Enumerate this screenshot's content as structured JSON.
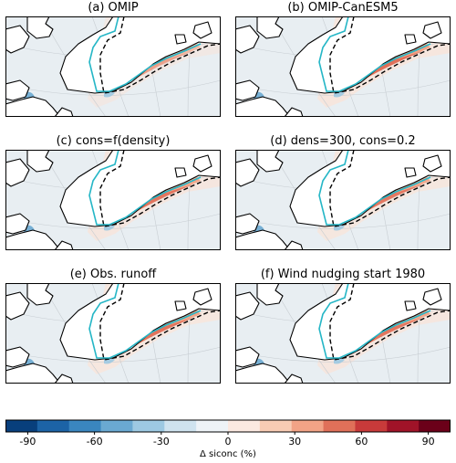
{
  "panels": [
    {
      "id": "a",
      "title": "(a) OMIP",
      "intensity": 0.35
    },
    {
      "id": "b",
      "title": "(b) OMIP-CanESM5",
      "intensity": 1.0
    },
    {
      "id": "c",
      "title": "(c) cons=f(density)",
      "intensity": 0.9
    },
    {
      "id": "d",
      "title": "(d) dens=300, cons=0.2",
      "intensity": 0.85
    },
    {
      "id": "e",
      "title": "(e) Obs. runoff",
      "intensity": 0.95
    },
    {
      "id": "f",
      "title": "(f) Wind nudging start 1980",
      "intensity": 0.9
    }
  ],
  "colorbar": {
    "label": "Δ siconc (%)",
    "range": [
      -100,
      100
    ],
    "ticks": [
      "-90",
      "-60",
      "-30",
      "0",
      "30",
      "60",
      "90"
    ],
    "tick_values": [
      -90,
      -60,
      -30,
      0,
      30,
      60,
      90
    ],
    "colors": [
      "#083f7c",
      "#1c63a6",
      "#3a86bf",
      "#6aa9d2",
      "#9dc9e2",
      "#cfe3ef",
      "#eef3f7",
      "#fbe9e1",
      "#f8ccb4",
      "#f2a386",
      "#e07059",
      "#c83a3a",
      "#a01328",
      "#6b0019"
    ]
  },
  "colors": {
    "land": "#ffffff",
    "ocean_neutral": "#e8eef2",
    "coastline": "#000000",
    "ice_edge_model": "#25b6c6",
    "ice_edge_obs": "#000000",
    "grid": "#c7cdd2"
  }
}
